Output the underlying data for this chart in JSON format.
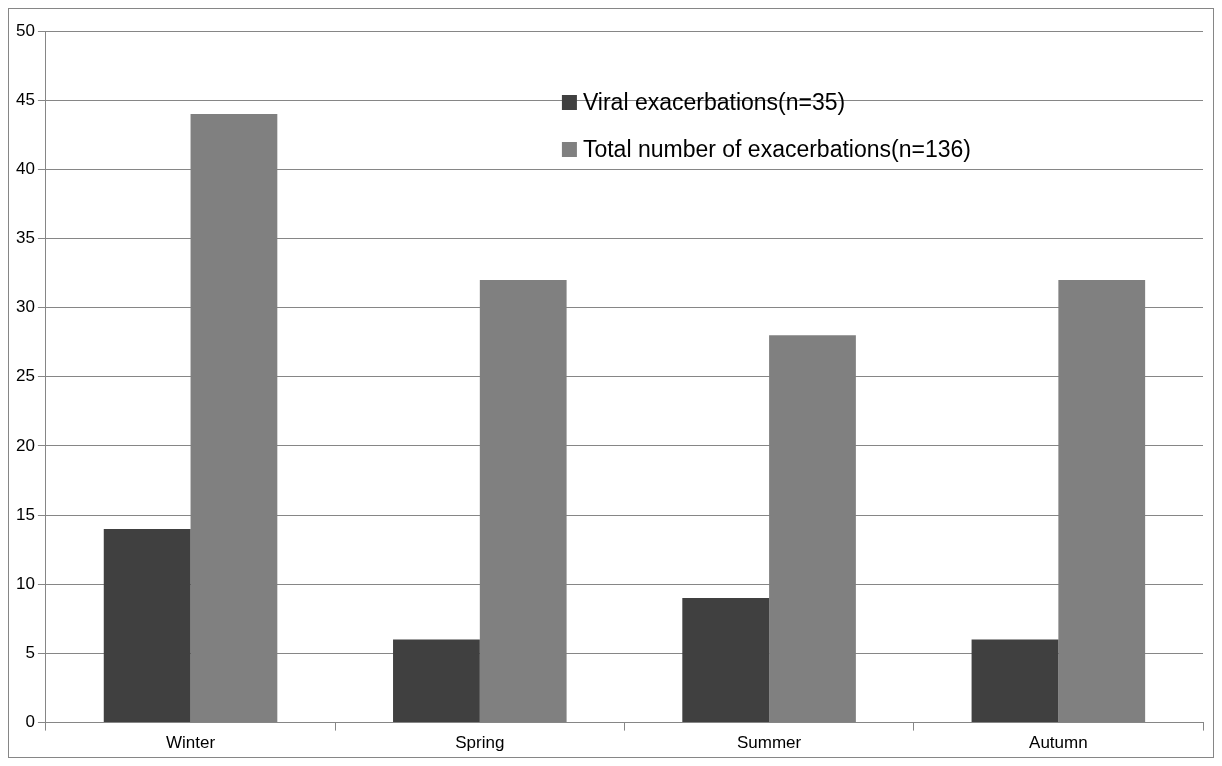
{
  "chart_data": {
    "type": "bar",
    "categories": [
      "Winter",
      "Spring",
      "Summer",
      "Autumn"
    ],
    "series": [
      {
        "name": "Viral exacerbations(n=35)",
        "color": "#404040",
        "values": [
          14,
          6,
          9,
          6
        ]
      },
      {
        "name": "Total number of exacerbations(n=136)",
        "color": "#808080",
        "values": [
          44,
          32,
          28,
          32
        ]
      }
    ],
    "ylim": [
      0,
      50
    ],
    "yticks": [
      0,
      5,
      10,
      15,
      20,
      25,
      30,
      35,
      40,
      45,
      50
    ],
    "grid": "y",
    "legend": "top"
  }
}
